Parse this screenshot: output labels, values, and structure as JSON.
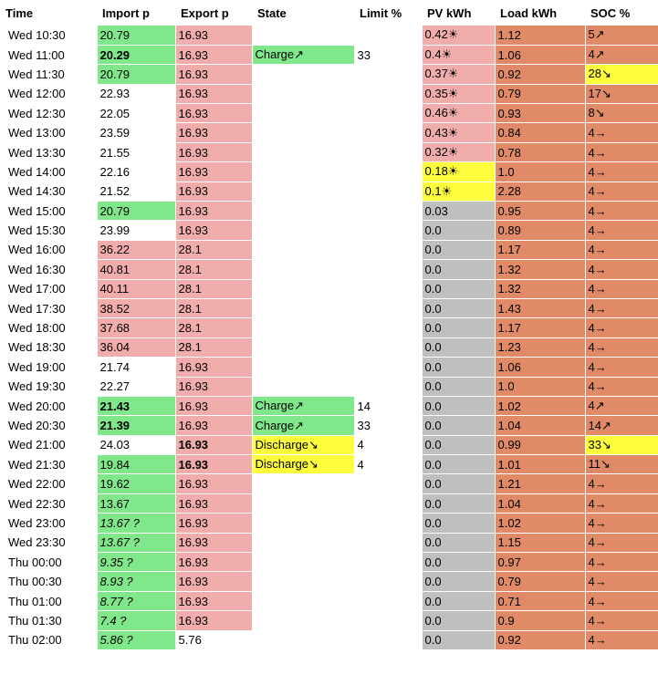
{
  "colors": {
    "green": "#80e88a",
    "pink": "#f1acac",
    "yellow": "#fdfd3d",
    "grey": "#bfbfbf",
    "orange": "#e08a68",
    "white": "#ffffff"
  },
  "headers": [
    "Time",
    "Import p",
    "Export p",
    "State",
    "Limit %",
    "PV kWh",
    "Load kWh",
    "SOC %"
  ],
  "rows": [
    {
      "time": "Wed 10:30",
      "import": "20.79",
      "ic": "green",
      "export": "16.93",
      "ec": "pink",
      "state": "",
      "sc": "white",
      "limit": "",
      "pv": "0.42☀",
      "pc": "pink",
      "load": "1.12",
      "soc": "5↗",
      "socc": "orange"
    },
    {
      "time": "Wed 11:00",
      "import": "20.29",
      "ic": "green",
      "ib": true,
      "export": "16.93",
      "ec": "pink",
      "state": "Charge↗",
      "sc": "green",
      "limit": "33",
      "pv": "0.4☀",
      "pc": "pink",
      "load": "1.06",
      "soc": "4↗",
      "socc": "orange"
    },
    {
      "time": "Wed 11:30",
      "import": "20.79",
      "ic": "green",
      "export": "16.93",
      "ec": "pink",
      "state": "",
      "sc": "white",
      "limit": "",
      "pv": "0.37☀",
      "pc": "pink",
      "load": "0.92",
      "soc": "28↘",
      "socc": "yellow"
    },
    {
      "time": "Wed 12:00",
      "import": "22.93",
      "ic": "white",
      "export": "16.93",
      "ec": "pink",
      "state": "",
      "sc": "white",
      "limit": "",
      "pv": "0.35☀",
      "pc": "pink",
      "load": "0.79",
      "soc": "17↘",
      "socc": "orange"
    },
    {
      "time": "Wed 12:30",
      "import": "22.05",
      "ic": "white",
      "export": "16.93",
      "ec": "pink",
      "state": "",
      "sc": "white",
      "limit": "",
      "pv": "0.46☀",
      "pc": "pink",
      "load": "0.93",
      "soc": "8↘",
      "socc": "orange"
    },
    {
      "time": "Wed 13:00",
      "import": "23.59",
      "ic": "white",
      "export": "16.93",
      "ec": "pink",
      "state": "",
      "sc": "white",
      "limit": "",
      "pv": "0.43☀",
      "pc": "pink",
      "load": "0.84",
      "soc": "4→",
      "socc": "orange"
    },
    {
      "time": "Wed 13:30",
      "import": "21.55",
      "ic": "white",
      "export": "16.93",
      "ec": "pink",
      "state": "",
      "sc": "white",
      "limit": "",
      "pv": "0.32☀",
      "pc": "pink",
      "load": "0.78",
      "soc": "4→",
      "socc": "orange"
    },
    {
      "time": "Wed 14:00",
      "import": "22.16",
      "ic": "white",
      "export": "16.93",
      "ec": "pink",
      "state": "",
      "sc": "white",
      "limit": "",
      "pv": "0.18☀",
      "pc": "yellow",
      "load": "1.0",
      "soc": "4→",
      "socc": "orange"
    },
    {
      "time": "Wed 14:30",
      "import": "21.52",
      "ic": "white",
      "export": "16.93",
      "ec": "pink",
      "state": "",
      "sc": "white",
      "limit": "",
      "pv": "0.1☀",
      "pc": "yellow",
      "load": "2.28",
      "soc": "4→",
      "socc": "orange"
    },
    {
      "time": "Wed 15:00",
      "import": "20.79",
      "ic": "green",
      "export": "16.93",
      "ec": "pink",
      "state": "",
      "sc": "white",
      "limit": "",
      "pv": "0.03",
      "pc": "grey",
      "load": "0.95",
      "soc": "4→",
      "socc": "orange"
    },
    {
      "time": "Wed 15:30",
      "import": "23.99",
      "ic": "white",
      "export": "16.93",
      "ec": "pink",
      "state": "",
      "sc": "white",
      "limit": "",
      "pv": "0.0",
      "pc": "grey",
      "load": "0.89",
      "soc": "4→",
      "socc": "orange"
    },
    {
      "time": "Wed 16:00",
      "import": "36.22",
      "ic": "pink",
      "export": "28.1",
      "ec": "pink",
      "state": "",
      "sc": "white",
      "limit": "",
      "pv": "0.0",
      "pc": "grey",
      "load": "1.17",
      "soc": "4→",
      "socc": "orange"
    },
    {
      "time": "Wed 16:30",
      "import": "40.81",
      "ic": "pink",
      "export": "28.1",
      "ec": "pink",
      "state": "",
      "sc": "white",
      "limit": "",
      "pv": "0.0",
      "pc": "grey",
      "load": "1.32",
      "soc": "4→",
      "socc": "orange"
    },
    {
      "time": "Wed 17:00",
      "import": "40.11",
      "ic": "pink",
      "export": "28.1",
      "ec": "pink",
      "state": "",
      "sc": "white",
      "limit": "",
      "pv": "0.0",
      "pc": "grey",
      "load": "1.32",
      "soc": "4→",
      "socc": "orange"
    },
    {
      "time": "Wed 17:30",
      "import": "38.52",
      "ic": "pink",
      "export": "28.1",
      "ec": "pink",
      "state": "",
      "sc": "white",
      "limit": "",
      "pv": "0.0",
      "pc": "grey",
      "load": "1.43",
      "soc": "4→",
      "socc": "orange"
    },
    {
      "time": "Wed 18:00",
      "import": "37.68",
      "ic": "pink",
      "export": "28.1",
      "ec": "pink",
      "state": "",
      "sc": "white",
      "limit": "",
      "pv": "0.0",
      "pc": "grey",
      "load": "1.17",
      "soc": "4→",
      "socc": "orange"
    },
    {
      "time": "Wed 18:30",
      "import": "36.04",
      "ic": "pink",
      "export": "28.1",
      "ec": "pink",
      "state": "",
      "sc": "white",
      "limit": "",
      "pv": "0.0",
      "pc": "grey",
      "load": "1.23",
      "soc": "4→",
      "socc": "orange"
    },
    {
      "time": "Wed 19:00",
      "import": "21.74",
      "ic": "white",
      "export": "16.93",
      "ec": "pink",
      "state": "",
      "sc": "white",
      "limit": "",
      "pv": "0.0",
      "pc": "grey",
      "load": "1.06",
      "soc": "4→",
      "socc": "orange"
    },
    {
      "time": "Wed 19:30",
      "import": "22.27",
      "ic": "white",
      "export": "16.93",
      "ec": "pink",
      "state": "",
      "sc": "white",
      "limit": "",
      "pv": "0.0",
      "pc": "grey",
      "load": "1.0",
      "soc": "4→",
      "socc": "orange"
    },
    {
      "time": "Wed 20:00",
      "import": "21.43",
      "ic": "green",
      "ib": true,
      "export": "16.93",
      "ec": "pink",
      "state": "Charge↗",
      "sc": "green",
      "limit": "14",
      "pv": "0.0",
      "pc": "grey",
      "load": "1.02",
      "soc": "4↗",
      "socc": "orange"
    },
    {
      "time": "Wed 20:30",
      "import": "21.39",
      "ic": "green",
      "ib": true,
      "export": "16.93",
      "ec": "pink",
      "state": "Charge↗",
      "sc": "green",
      "limit": "33",
      "pv": "0.0",
      "pc": "grey",
      "load": "1.04",
      "soc": "14↗",
      "socc": "orange"
    },
    {
      "time": "Wed 21:00",
      "import": "24.03",
      "ic": "white",
      "export": "16.93",
      "ec": "pink",
      "eb": true,
      "state": "Discharge↘",
      "sc": "yellow",
      "limit": "4",
      "pv": "0.0",
      "pc": "grey",
      "load": "0.99",
      "soc": "33↘",
      "socc": "yellow"
    },
    {
      "time": "Wed 21:30",
      "import": "19.84",
      "ic": "green",
      "export": "16.93",
      "ec": "pink",
      "eb": true,
      "state": "Discharge↘",
      "sc": "yellow",
      "limit": "4",
      "pv": "0.0",
      "pc": "grey",
      "load": "1.01",
      "soc": "11↘",
      "socc": "orange"
    },
    {
      "time": "Wed 22:00",
      "import": "19.62",
      "ic": "green",
      "export": "16.93",
      "ec": "pink",
      "state": "",
      "sc": "white",
      "limit": "",
      "pv": "0.0",
      "pc": "grey",
      "load": "1.21",
      "soc": "4→",
      "socc": "orange"
    },
    {
      "time": "Wed 22:30",
      "import": "13.67",
      "ic": "green",
      "export": "16.93",
      "ec": "pink",
      "state": "",
      "sc": "white",
      "limit": "",
      "pv": "0.0",
      "pc": "grey",
      "load": "1.04",
      "soc": "4→",
      "socc": "orange"
    },
    {
      "time": "Wed 23:00",
      "import": "13.67 ?",
      "ic": "green",
      "ii": true,
      "export": "16.93",
      "ec": "pink",
      "state": "",
      "sc": "white",
      "limit": "",
      "pv": "0.0",
      "pc": "grey",
      "load": "1.02",
      "soc": "4→",
      "socc": "orange"
    },
    {
      "time": "Wed 23:30",
      "import": "13.67 ?",
      "ic": "green",
      "ii": true,
      "export": "16.93",
      "ec": "pink",
      "state": "",
      "sc": "white",
      "limit": "",
      "pv": "0.0",
      "pc": "grey",
      "load": "1.15",
      "soc": "4→",
      "socc": "orange"
    },
    {
      "time": "Thu 00:00",
      "import": "9.35 ?",
      "ic": "green",
      "ii": true,
      "export": "16.93",
      "ec": "pink",
      "state": "",
      "sc": "white",
      "limit": "",
      "pv": "0.0",
      "pc": "grey",
      "load": "0.97",
      "soc": "4→",
      "socc": "orange"
    },
    {
      "time": "Thu 00:30",
      "import": "8.93 ?",
      "ic": "green",
      "ii": true,
      "export": "16.93",
      "ec": "pink",
      "state": "",
      "sc": "white",
      "limit": "",
      "pv": "0.0",
      "pc": "grey",
      "load": "0.79",
      "soc": "4→",
      "socc": "orange"
    },
    {
      "time": "Thu 01:00",
      "import": "8.77 ?",
      "ic": "green",
      "ii": true,
      "export": "16.93",
      "ec": "pink",
      "state": "",
      "sc": "white",
      "limit": "",
      "pv": "0.0",
      "pc": "grey",
      "load": "0.71",
      "soc": "4→",
      "socc": "orange"
    },
    {
      "time": "Thu 01:30",
      "import": "7.4 ?",
      "ic": "green",
      "ii": true,
      "export": "16.93",
      "ec": "pink",
      "state": "",
      "sc": "white",
      "limit": "",
      "pv": "0.0",
      "pc": "grey",
      "load": "0.9",
      "soc": "4→",
      "socc": "orange"
    },
    {
      "time": "Thu 02:00",
      "import": "5.86 ?",
      "ic": "green",
      "ii": true,
      "export": "5.76",
      "ec": "white",
      "state": "",
      "sc": "white",
      "limit": "",
      "pv": "0.0",
      "pc": "grey",
      "load": "0.92",
      "soc": "4→",
      "socc": "orange"
    }
  ]
}
